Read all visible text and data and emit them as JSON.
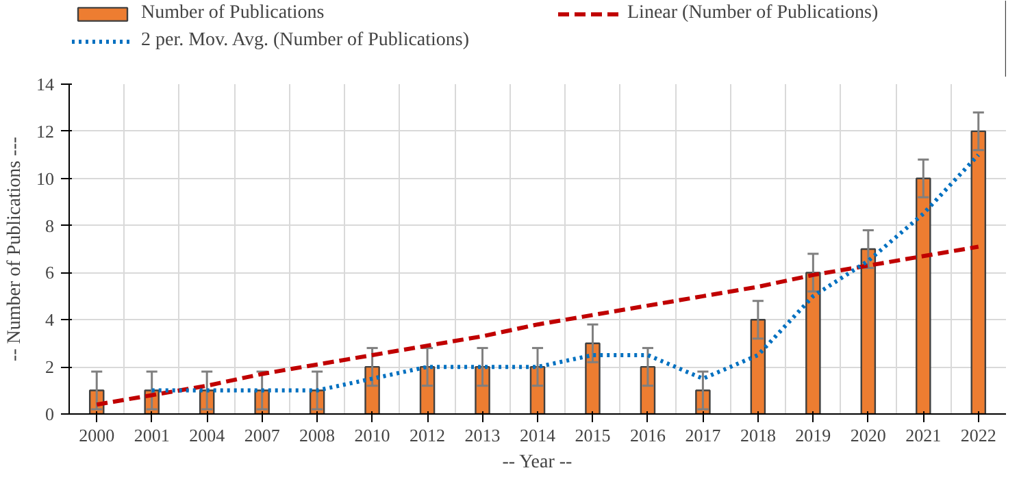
{
  "chart_data": {
    "type": "bar",
    "xlabel": "-- Year --",
    "ylabel": "-- Number of Publications ---",
    "categories": [
      "2000",
      "2001",
      "2004",
      "2007",
      "2008",
      "2010",
      "2012",
      "2013",
      "2014",
      "2015",
      "2016",
      "2017",
      "2018",
      "2019",
      "2020",
      "2021",
      "2022"
    ],
    "series": [
      {
        "name": "Number of Publications",
        "color": "#ed7d31",
        "values": [
          1,
          1,
          1,
          1,
          1,
          2,
          2,
          2,
          2,
          3,
          2,
          1,
          4,
          6,
          7,
          10,
          12
        ],
        "errors": [
          0.8,
          0.8,
          0.8,
          0.8,
          0.8,
          0.8,
          0.8,
          0.8,
          0.8,
          0.8,
          0.8,
          0.8,
          0.8,
          0.8,
          0.8,
          0.8,
          0.8
        ]
      },
      {
        "name": "Linear (Number of Publications)",
        "type": "line",
        "line_style": "dashed",
        "color": "#c00000",
        "values": [
          0.4,
          0.8,
          1.2,
          1.7,
          2.1,
          2.5,
          2.9,
          3.3,
          3.8,
          4.2,
          4.6,
          5.0,
          5.4,
          5.9,
          6.3,
          6.7,
          7.1
        ]
      },
      {
        "name": "2 per. Mov. Avg. (Number of Publications)",
        "type": "line",
        "line_style": "dotted",
        "color": "#0070c0",
        "values": [
          null,
          1,
          1,
          1,
          1,
          1.5,
          2,
          2,
          2,
          2.5,
          2.5,
          1.5,
          2.5,
          5,
          6.5,
          8.5,
          11
        ]
      }
    ],
    "ylim": [
      0,
      14
    ],
    "yticks": [
      0,
      2,
      4,
      6,
      8,
      10,
      12,
      14
    ],
    "grid": true,
    "legend": "top"
  }
}
